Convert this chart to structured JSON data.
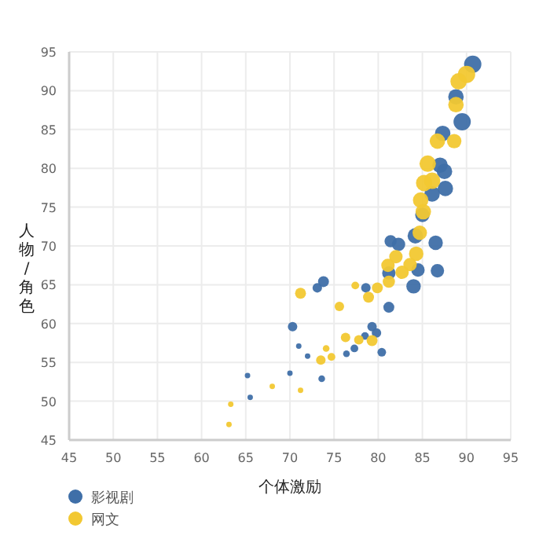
{
  "chart_data": {
    "type": "bubble",
    "xlabel": "个体激励",
    "ylabel": "人物/角色",
    "xlim": [
      45,
      95
    ],
    "xticks": [
      45,
      50,
      55,
      60,
      65,
      70,
      75,
      80,
      85,
      90,
      95
    ],
    "ylim": [
      45,
      95
    ],
    "yticks": [
      45,
      50,
      55,
      60,
      65,
      70,
      75,
      80,
      85,
      90,
      95
    ],
    "grid": true,
    "legend": "bottom left",
    "series": [
      {
        "name": "影视剧",
        "color": "#3f6fa8",
        "x": [
          90.7,
          88.8,
          89.5,
          87.3,
          87.0,
          87.5,
          87.6,
          86.1,
          85.0,
          84.2,
          81.4,
          82.3,
          86.5,
          84.5,
          86.7,
          81.2,
          84.0,
          81.2,
          78.6,
          73.8,
          73.1,
          70.3,
          79.3,
          79.8,
          78.5,
          77.3,
          76.4,
          80.4,
          72.0,
          71.0,
          70.0,
          73.6,
          65.2,
          65.5
        ],
        "values": [
          93.4,
          89.2,
          86.0,
          84.5,
          80.4,
          79.6,
          77.4,
          76.7,
          74.0,
          71.3,
          70.6,
          70.2,
          70.4,
          66.9,
          66.8,
          66.5,
          64.8,
          62.1,
          64.6,
          65.4,
          64.6,
          59.6,
          59.6,
          58.8,
          58.4,
          56.8,
          56.1,
          56.3,
          55.8,
          57.1,
          53.6,
          52.9,
          53.3,
          50.5
        ],
        "sizes": [
          1,
          0.8,
          1,
          0.8,
          0.8,
          0.8,
          0.8,
          0.8,
          0.7,
          0.8,
          0.5,
          0.6,
          0.7,
          0.6,
          0.6,
          0.6,
          0.7,
          0.4,
          0.3,
          0.4,
          0.3,
          0.3,
          0.3,
          0.3,
          0.2,
          0.2,
          0.15,
          0.25,
          0.1,
          0.1,
          0.1,
          0.15,
          0.1,
          0.1
        ]
      },
      {
        "name": "网文",
        "color": "#f2c832",
        "x": [
          90.0,
          89.1,
          88.8,
          86.7,
          88.6,
          85.6,
          85.2,
          86.1,
          84.8,
          85.1,
          84.7,
          84.3,
          82.0,
          81.1,
          83.6,
          82.7,
          81.2,
          79.9,
          78.9,
          77.4,
          71.2,
          75.6,
          79.3,
          77.8,
          76.3,
          74.1,
          73.5,
          74.7,
          71.2,
          68.0,
          63.3,
          63.1
        ],
        "values": [
          92.1,
          91.2,
          88.2,
          83.5,
          83.5,
          80.6,
          78.1,
          78.4,
          75.9,
          74.4,
          71.7,
          69.0,
          68.6,
          67.5,
          67.6,
          66.6,
          65.4,
          64.6,
          63.4,
          64.9,
          63.9,
          62.2,
          57.8,
          57.9,
          58.2,
          56.8,
          55.3,
          55.7,
          51.4,
          51.9,
          49.6,
          47.0
        ],
        "sizes": [
          1,
          0.9,
          0.8,
          0.8,
          0.7,
          0.9,
          0.9,
          0.9,
          0.8,
          0.8,
          0.7,
          0.7,
          0.6,
          0.6,
          0.6,
          0.6,
          0.5,
          0.4,
          0.4,
          0.2,
          0.4,
          0.3,
          0.4,
          0.3,
          0.3,
          0.15,
          0.3,
          0.2,
          0.1,
          0.1,
          0.1,
          0.1
        ]
      }
    ]
  }
}
